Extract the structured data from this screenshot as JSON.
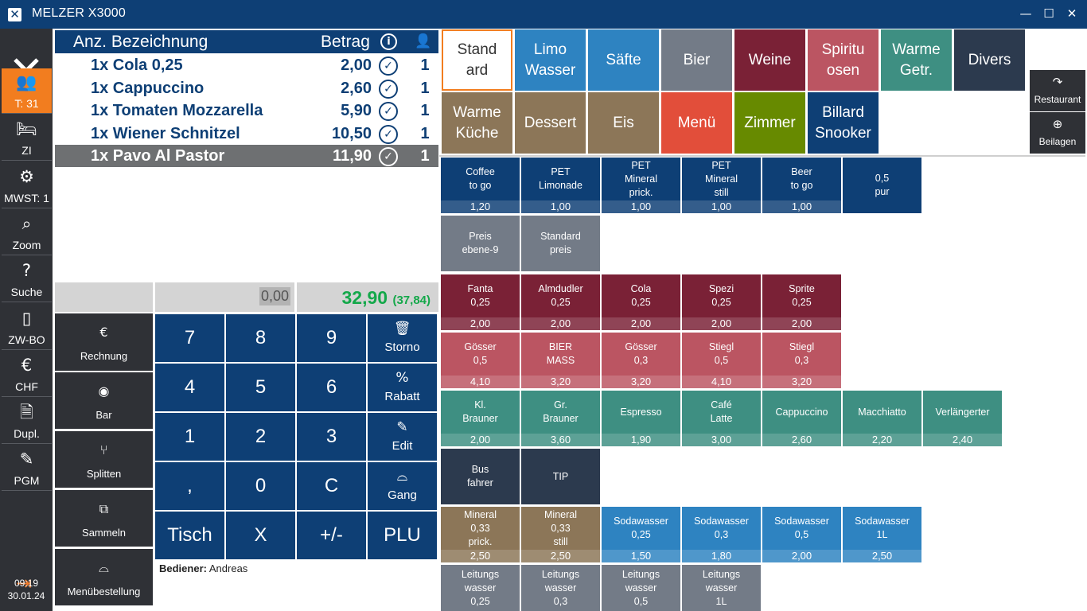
{
  "titlebar": {
    "app_title": "MELZER X3000",
    "logo_glyph": "✕",
    "minimize": "—",
    "maximize": "☐",
    "close": "✕"
  },
  "sidebar": {
    "items": [
      {
        "icon": "people-icon",
        "glyph": "👥",
        "label": "T: 31",
        "active": true
      },
      {
        "icon": "bed-icon",
        "glyph": "🛏",
        "label": "ZI"
      },
      {
        "icon": "percent-gear-icon",
        "glyph": "⚙",
        "label": "MWST: 1"
      },
      {
        "icon": "search-icon",
        "glyph": "⌕",
        "label": "Zoom"
      },
      {
        "icon": "question-icon",
        "glyph": "?",
        "label": "Suche"
      },
      {
        "icon": "bookmark-icon",
        "glyph": "▯",
        "label": "ZW-BO"
      },
      {
        "icon": "euro-coin-icon",
        "glyph": "€",
        "label": "CHF"
      },
      {
        "icon": "receipt-icon",
        "glyph": "🗎",
        "label": "Dupl."
      },
      {
        "icon": "pencil-icon",
        "glyph": "✎",
        "label": "PGM"
      }
    ],
    "exit_glyph": "⇥",
    "time": "09:19",
    "date": "30.01.24"
  },
  "order": {
    "header": {
      "qty_name": "Anz. Bezeichnung",
      "amount": "Betrag",
      "info": "i",
      "person": "👤"
    },
    "rows": [
      {
        "name": "1x Cola 0,25",
        "price": "2,00",
        "qty": "1"
      },
      {
        "name": "1x Cappuccino",
        "price": "2,60",
        "qty": "1"
      },
      {
        "name": "1x Tomaten Mozzarella",
        "price": "5,90",
        "qty": "1"
      },
      {
        "name": "1x Wiener Schnitzel",
        "price": "10,50",
        "qty": "1"
      },
      {
        "name": "1x Pavo Al Pastor",
        "price": "11,90",
        "qty": "1",
        "selected": true
      }
    ],
    "check": "✓"
  },
  "display": {
    "input": "0,00",
    "total": "32,90",
    "total_sub": "(37,84)",
    "total_color": "#14a84a"
  },
  "actions": [
    {
      "icon": "invoice-icon",
      "glyph": "€",
      "label": "Rechnung"
    },
    {
      "icon": "cash-icon",
      "glyph": "◉",
      "label": "Bar"
    },
    {
      "icon": "split-icon",
      "glyph": "⑂",
      "label": "Splitten"
    },
    {
      "icon": "collect-icon",
      "glyph": "⧉",
      "label": "Sammeln"
    },
    {
      "icon": "cloche-icon",
      "glyph": "⌓",
      "label": "Menübestellung"
    }
  ],
  "keypad": {
    "digits": [
      "7",
      "8",
      "9",
      "4",
      "5",
      "6",
      "1",
      "2",
      "3",
      ",",
      "0",
      "C"
    ],
    "bottom": [
      "Tisch",
      "X",
      "+/-",
      "PLU"
    ],
    "side": [
      {
        "icon": "trash-icon",
        "glyph": "🗑",
        "label": "Storno"
      },
      {
        "icon": "discount-icon",
        "glyph": "%",
        "label": "Rabatt"
      },
      {
        "icon": "pencil-icon",
        "glyph": "✎",
        "label": "Edit"
      },
      {
        "icon": "cloche-icon",
        "glyph": "⌓",
        "label": "Gang"
      }
    ]
  },
  "operator": {
    "label": "Bediener:",
    "name": "Andreas"
  },
  "categories": [
    {
      "label": "Stand\nard",
      "bg": "#ffffff",
      "fg": "#333333"
    },
    {
      "label": "Limo\nWasser",
      "bg": "#2e83c1"
    },
    {
      "label": "Säfte",
      "bg": "#2e83c1"
    },
    {
      "label": "Bier",
      "bg": "#737b87"
    },
    {
      "label": "Weine",
      "bg": "#7a2136"
    },
    {
      "label": "Spiritu\nosen",
      "bg": "#bb5562"
    },
    {
      "label": "Warme\nGetr.",
      "bg": "#3e8f82"
    },
    {
      "label": "Divers",
      "bg": "#2c3a4e"
    },
    {
      "label": "Warme\nKüche",
      "bg": "#8c7658"
    },
    {
      "label": "Dessert",
      "bg": "#8c7658"
    },
    {
      "label": "Eis",
      "bg": "#8c7658"
    },
    {
      "label": "Menü",
      "bg": "#e24e3a"
    },
    {
      "label": "Zimmer",
      "bg": "#678a00"
    },
    {
      "label": "Billard\nSnooker",
      "bg": "#0e3f75"
    }
  ],
  "side_buttons": [
    {
      "icon": "share-icon",
      "glyph": "↷",
      "label": "Restaurant"
    },
    {
      "icon": "plus-circle-icon",
      "glyph": "⊕",
      "label": "Beilagen"
    }
  ],
  "products": [
    [
      {
        "name": "Coffee\nto go",
        "price": "1,20",
        "bg": "#0e3f75"
      },
      {
        "name": "PET\nLimonade",
        "price": "1,00",
        "bg": "#0e3f75"
      },
      {
        "name": "PET\nMineral\nprick.",
        "price": "1,00",
        "bg": "#0e3f75"
      },
      {
        "name": "PET\nMineral\nstill",
        "price": "1,00",
        "bg": "#0e3f75"
      },
      {
        "name": "Beer\nto go",
        "price": "1,00",
        "bg": "#0e3f75"
      },
      {
        "name": "0,5\npur",
        "price": "",
        "bg": "#0e3f75"
      }
    ],
    [
      {
        "name": "Preis\nebene-9",
        "price": "",
        "bg": "#737b87"
      },
      {
        "name": "Standard\npreis",
        "price": "",
        "bg": "#737b87"
      }
    ],
    [
      {
        "name": "Fanta\n0,25",
        "price": "2,00",
        "bg": "#7a2136"
      },
      {
        "name": "Almdudler\n0,25",
        "price": "2,00",
        "bg": "#7a2136"
      },
      {
        "name": "Cola\n0,25",
        "price": "2,00",
        "bg": "#7a2136"
      },
      {
        "name": "Spezi\n0,25",
        "price": "2,00",
        "bg": "#7a2136"
      },
      {
        "name": "Sprite\n0,25",
        "price": "2,00",
        "bg": "#7a2136"
      }
    ],
    [
      {
        "name": "Gösser\n0,5",
        "price": "4,10",
        "bg": "#bb5562"
      },
      {
        "name": "BIER\nMASS",
        "price": "3,20",
        "bg": "#bb5562"
      },
      {
        "name": "Gösser\n0,3",
        "price": "3,20",
        "bg": "#bb5562"
      },
      {
        "name": "Stiegl\n0,5",
        "price": "4,10",
        "bg": "#bb5562"
      },
      {
        "name": "Stiegl\n0,3",
        "price": "3,20",
        "bg": "#bb5562"
      }
    ],
    [
      {
        "name": "Kl.\nBrauner",
        "price": "2,00",
        "bg": "#3e8f82"
      },
      {
        "name": "Gr.\nBrauner",
        "price": "3,60",
        "bg": "#3e8f82"
      },
      {
        "name": "Espresso",
        "price": "1,90",
        "bg": "#3e8f82"
      },
      {
        "name": "Café\nLatte",
        "price": "3,00",
        "bg": "#3e8f82"
      },
      {
        "name": "Cappuccino",
        "price": "2,60",
        "bg": "#3e8f82"
      },
      {
        "name": "Macchiatto",
        "price": "2,20",
        "bg": "#3e8f82"
      },
      {
        "name": "Verlängerter",
        "price": "2,40",
        "bg": "#3e8f82"
      }
    ],
    [
      {
        "name": "Bus\nfahrer",
        "price": "",
        "bg": "#2c3a4e"
      },
      {
        "name": "TIP",
        "price": "",
        "bg": "#2c3a4e"
      }
    ],
    [
      {
        "name": "Mineral\n0,33\nprick.",
        "price": "2,50",
        "bg": "#8c7658"
      },
      {
        "name": "Mineral\n0,33\nstill",
        "price": "2,50",
        "bg": "#8c7658"
      },
      {
        "name": "Sodawasser\n0,25",
        "price": "1,50",
        "bg": "#2e83c1"
      },
      {
        "name": "Sodawasser\n0,3",
        "price": "1,80",
        "bg": "#2e83c1"
      },
      {
        "name": "Sodawasser\n0,5",
        "price": "2,00",
        "bg": "#2e83c1"
      },
      {
        "name": "Sodawasser\n1L",
        "price": "2,50",
        "bg": "#2e83c1"
      }
    ],
    [
      {
        "name": "Leitungs\nwasser\n0,25",
        "price": "",
        "bg": "#737b87"
      },
      {
        "name": "Leitungs\nwasser\n0,3",
        "price": "",
        "bg": "#737b87"
      },
      {
        "name": "Leitungs\nwasser\n0,5",
        "price": "",
        "bg": "#737b87"
      },
      {
        "name": "Leitungs\nwasser\n1L",
        "price": "",
        "bg": "#737b87"
      }
    ]
  ]
}
